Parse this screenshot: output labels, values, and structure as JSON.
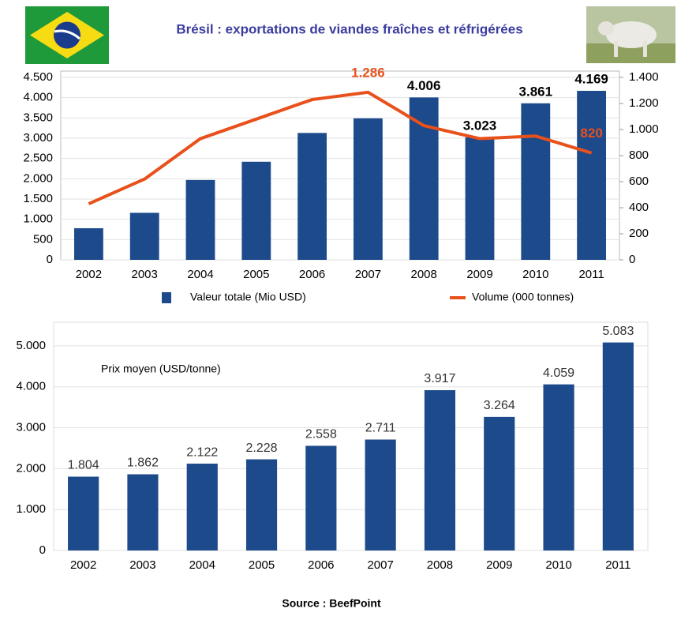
{
  "chart_data": [
    {
      "type": "bar",
      "title": "Brésil : exportations de viandes fraîches et réfrigérées",
      "categories": [
        "2002",
        "2003",
        "2004",
        "2005",
        "2006",
        "2007",
        "2008",
        "2009",
        "2010",
        "2011"
      ],
      "series": [
        {
          "name": "Valeur totale (Mio USD)",
          "type": "bar",
          "color": "#1c4a8a",
          "values": [
            780,
            1160,
            1970,
            2420,
            3130,
            3490,
            4006,
            3023,
            3861,
            4169
          ],
          "value_labels": [
            null,
            null,
            null,
            null,
            null,
            null,
            "4.006",
            "3.023",
            "3.861",
            "4.169"
          ]
        },
        {
          "name": "Volume (000 tonnes)",
          "type": "line",
          "axis": "y2",
          "color": "#e8501c",
          "values": [
            430,
            620,
            930,
            1080,
            1230,
            1286,
            1030,
            930,
            950,
            820
          ],
          "value_labels": [
            null,
            null,
            null,
            null,
            null,
            "1.286",
            null,
            null,
            null,
            "820"
          ]
        }
      ],
      "ylim": [
        0,
        4500
      ],
      "yticks": [
        0,
        500,
        {
          "value": 1000,
          "label": "1.000"
        },
        {
          "value": 1500,
          "label": "1.500"
        },
        {
          "value": 2000,
          "label": "2.000"
        },
        {
          "value": 2500,
          "label": "2.500"
        },
        {
          "value": 3000,
          "label": "3.000"
        },
        {
          "value": 3500,
          "label": "3.500"
        },
        {
          "value": 4000,
          "label": "4.000"
        },
        {
          "value": 4500,
          "label": "4.500"
        }
      ],
      "y2lim": [
        0,
        1400
      ],
      "y2ticks": [
        0,
        200,
        400,
        600,
        800,
        {
          "value": 1000,
          "label": "1.000"
        },
        {
          "value": 1200,
          "label": "1.200"
        },
        {
          "value": 1400,
          "label": "1.400"
        }
      ],
      "grid": true
    },
    {
      "type": "bar",
      "annotation": "Prix moyen (USD/tonne)",
      "categories": [
        "2002",
        "2003",
        "2004",
        "2005",
        "2006",
        "2007",
        "2008",
        "2009",
        "2010",
        "2011"
      ],
      "values": [
        1804,
        1862,
        2122,
        2228,
        2558,
        2711,
        3917,
        3264,
        4059,
        5083
      ],
      "value_labels": [
        "1.804",
        "1.862",
        "2.122",
        "2.228",
        "2.558",
        "2.711",
        "3.917",
        "3.264",
        "4.059",
        "5.083"
      ],
      "color": "#1c4a8a",
      "ylim": [
        0,
        5500
      ],
      "yticks": [
        0,
        {
          "value": 1000,
          "label": "1.000"
        },
        {
          "value": 2000,
          "label": "2.000"
        },
        {
          "value": 3000,
          "label": "3.000"
        },
        {
          "value": 4000,
          "label": "4.000"
        },
        {
          "value": 5000,
          "label": "5.000"
        }
      ],
      "grid": true
    }
  ],
  "source": "Source : BeefPoint"
}
